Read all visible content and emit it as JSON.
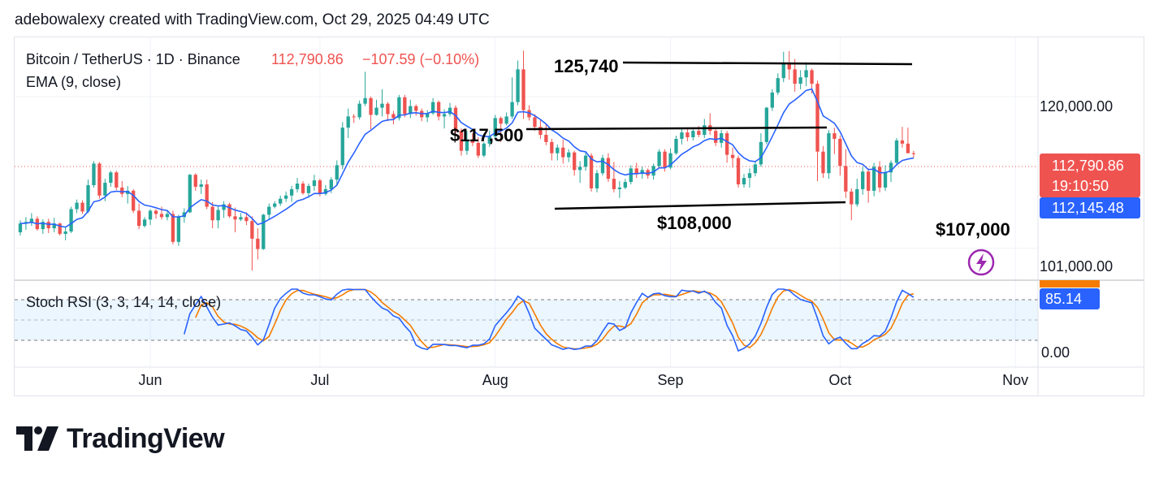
{
  "header": {
    "text": "adebowalexy created with TradingView.com, Oct 29, 2025 04:49 UTC"
  },
  "legend": {
    "symbol": "Bitcoin / TetherUS · 1D · Binance",
    "price": "112,790.86",
    "change": "−107.59 (−0.10%)",
    "ema_label": "EMA (9, close)",
    "rsi_label": "Stoch RSI (3, 3, 14, 14, close)"
  },
  "annotations": {
    "top": "125,740",
    "mid": "$117,500",
    "low1": "$108,000",
    "low2": "$107,000"
  },
  "price_axis": {
    "ticks": [
      "120,000.00",
      "101,000.00"
    ],
    "last_price": "112,790.86",
    "countdown": "19:10:50",
    "ema_value": "112,145.48"
  },
  "rsi_axis": {
    "tick": "0.00",
    "value": "85.14"
  },
  "x_axis": {
    "labels": [
      "Jun",
      "Jul",
      "Aug",
      "Sep",
      "Oct",
      "Nov"
    ]
  },
  "brand": {
    "name": "TradingView"
  },
  "colors": {
    "up": "#26a69a",
    "down": "#ef5350",
    "ema": "#2962ff",
    "k_line": "#2962ff",
    "d_line": "#f57c00",
    "countdown_bg": "#ef5350",
    "ema_badge": "#2962ff",
    "bolt": "#9c27b0"
  },
  "chart_data": {
    "type": "candlestick",
    "title": "Bitcoin / TetherUS · 1D · Binance",
    "x_range": [
      "2025-05-08",
      "2025-11-05"
    ],
    "ylim": [
      97000,
      127000
    ],
    "candles_start": "2025-05-09",
    "candles_ohlc": [
      [
        103000,
        104500,
        102600,
        104100
      ],
      [
        104100,
        104900,
        103300,
        104300
      ],
      [
        104300,
        105400,
        103800,
        104700
      ],
      [
        104700,
        105000,
        103200,
        103400
      ],
      [
        103400,
        104600,
        102800,
        104300
      ],
      [
        104300,
        104700,
        102900,
        103500
      ],
      [
        103500,
        104800,
        103000,
        104100
      ],
      [
        104100,
        104200,
        102600,
        102800
      ],
      [
        102800,
        103700,
        102000,
        103100
      ],
      [
        103100,
        106200,
        102900,
        105900
      ],
      [
        105900,
        107100,
        105400,
        106700
      ],
      [
        106700,
        107000,
        105300,
        105600
      ],
      [
        105600,
        109600,
        105400,
        108900
      ],
      [
        108900,
        111900,
        108600,
        111600
      ],
      [
        111600,
        111800,
        107200,
        107600
      ],
      [
        107600,
        109700,
        106900,
        109200
      ],
      [
        109200,
        110700,
        108700,
        110500
      ],
      [
        110500,
        110700,
        108300,
        108600
      ],
      [
        108600,
        109400,
        107400,
        107800
      ],
      [
        107800,
        108800,
        106600,
        108200
      ],
      [
        108200,
        108400,
        105400,
        105700
      ],
      [
        105700,
        106600,
        103400,
        103800
      ],
      [
        103800,
        104900,
        103600,
        104600
      ],
      [
        104600,
        105900,
        103900,
        105700
      ],
      [
        105700,
        105900,
        104700,
        105300
      ],
      [
        105300,
        106200,
        104600,
        104900
      ],
      [
        104900,
        105700,
        104500,
        105300
      ],
      [
        105300,
        105700,
        101500,
        101800
      ],
      [
        101800,
        105200,
        101300,
        104900
      ],
      [
        104900,
        106000,
        104200,
        105500
      ],
      [
        105500,
        110300,
        105400,
        110200
      ],
      [
        110200,
        110400,
        108200,
        108700
      ],
      [
        108700,
        109600,
        107800,
        109000
      ],
      [
        109000,
        109600,
        105900,
        106200
      ],
      [
        106200,
        106800,
        103500,
        104500
      ],
      [
        104500,
        106400,
        103500,
        105800
      ],
      [
        105800,
        106900,
        104800,
        106500
      ],
      [
        106500,
        106700,
        104800,
        105000
      ],
      [
        105000,
        106100,
        103000,
        104600
      ],
      [
        104600,
        105400,
        104400,
        104900
      ],
      [
        104900,
        105500,
        103900,
        104400
      ],
      [
        104400,
        105000,
        98200,
        102200
      ],
      [
        102200,
        103500,
        99600,
        100900
      ],
      [
        100900,
        105300,
        100800,
        105200
      ],
      [
        105200,
        106600,
        104600,
        106200
      ],
      [
        106200,
        106900,
        106000,
        106600
      ],
      [
        106600,
        107600,
        106300,
        107200
      ],
      [
        107200,
        108100,
        106800,
        107600
      ],
      [
        107600,
        108800,
        106800,
        108400
      ],
      [
        108400,
        109800,
        108000,
        109100
      ],
      [
        109100,
        109400,
        107700,
        107900
      ],
      [
        107900,
        109100,
        107300,
        108800
      ],
      [
        108800,
        110200,
        108200,
        109500
      ],
      [
        109500,
        109700,
        107500,
        107800
      ],
      [
        107800,
        108900,
        107600,
        108400
      ],
      [
        108400,
        109900,
        107900,
        109600
      ],
      [
        109600,
        112000,
        108900,
        111400
      ],
      [
        111400,
        116800,
        110900,
        116100
      ],
      [
        116100,
        118500,
        114800,
        117500
      ],
      [
        117500,
        117800,
        116700,
        117400
      ],
      [
        117400,
        119500,
        117100,
        119100
      ],
      [
        119100,
        123100,
        118800,
        119800
      ],
      [
        119800,
        120000,
        115900,
        117700
      ],
      [
        117700,
        119600,
        117600,
        118600
      ],
      [
        118600,
        120900,
        117500,
        119100
      ],
      [
        119100,
        119300,
        116900,
        117800
      ],
      [
        117800,
        118200,
        116500,
        117300
      ],
      [
        117300,
        120200,
        117000,
        119900
      ],
      [
        119900,
        120200,
        117400,
        117800
      ],
      [
        117800,
        119600,
        117300,
        118800
      ],
      [
        118800,
        119000,
        117600,
        118200
      ],
      [
        118200,
        118500,
        116900,
        117400
      ],
      [
        117400,
        118300,
        116800,
        117900
      ],
      [
        117900,
        119800,
        117700,
        119300
      ],
      [
        119300,
        119500,
        117000,
        117500
      ],
      [
        117500,
        118400,
        116000,
        117800
      ],
      [
        117800,
        119200,
        117500,
        118600
      ],
      [
        118600,
        118900,
        115400,
        115700
      ],
      [
        115700,
        116000,
        112600,
        113200
      ],
      [
        113200,
        115700,
        112700,
        114500
      ],
      [
        114500,
        115400,
        113800,
        114200
      ],
      [
        114200,
        114900,
        112300,
        112600
      ],
      [
        112600,
        114300,
        112400,
        114100
      ],
      [
        114100,
        115700,
        113700,
        115000
      ],
      [
        115000,
        117700,
        114700,
        117300
      ],
      [
        117300,
        117500,
        114300,
        116600
      ],
      [
        116600,
        118000,
        116400,
        117500
      ],
      [
        117500,
        122400,
        117200,
        119300
      ],
      [
        119300,
        124500,
        118900,
        123400
      ],
      [
        123400,
        125740,
        117200,
        118300
      ],
      [
        118300,
        118900,
        117000,
        117400
      ],
      [
        117400,
        117800,
        115700,
        116200
      ],
      [
        116200,
        117100,
        114700,
        115200
      ],
      [
        115200,
        116500,
        113900,
        114300
      ],
      [
        114300,
        114700,
        112000,
        112900
      ],
      [
        112900,
        114000,
        112000,
        113600
      ],
      [
        113600,
        114600,
        111600,
        112400
      ],
      [
        112400,
        113400,
        111800,
        113000
      ],
      [
        113000,
        113200,
        110100,
        110800
      ],
      [
        110800,
        111900,
        109200,
        111200
      ],
      [
        111200,
        113000,
        110700,
        112600
      ],
      [
        112600,
        112900,
        108100,
        108500
      ],
      [
        108500,
        110800,
        108000,
        110400
      ],
      [
        110400,
        112700,
        110100,
        112300
      ],
      [
        112300,
        112900,
        109300,
        109700
      ],
      [
        109700,
        111800,
        108000,
        108400
      ],
      [
        108400,
        109400,
        107300,
        108600
      ],
      [
        108600,
        109700,
        108400,
        109300
      ],
      [
        109300,
        111400,
        109000,
        111000
      ],
      [
        111000,
        111700,
        109800,
        110300
      ],
      [
        110300,
        111200,
        109700,
        110800
      ],
      [
        110800,
        111000,
        109700,
        110100
      ],
      [
        110100,
        111600,
        109600,
        111300
      ],
      [
        111300,
        113400,
        111000,
        113100
      ],
      [
        113100,
        113400,
        110600,
        111100
      ],
      [
        111100,
        113500,
        110900,
        112900
      ],
      [
        112900,
        115100,
        112700,
        114700
      ],
      [
        114700,
        116000,
        114000,
        115500
      ],
      [
        115500,
        115900,
        114400,
        114900
      ],
      [
        114900,
        115900,
        114500,
        115700
      ],
      [
        115700,
        116300,
        114900,
        115200
      ],
      [
        115200,
        117200,
        114800,
        116400
      ],
      [
        116400,
        117900,
        115200,
        115700
      ],
      [
        115700,
        116000,
        113800,
        114200
      ],
      [
        114200,
        115800,
        113600,
        115400
      ],
      [
        115400,
        115700,
        111700,
        112700
      ],
      [
        112700,
        113600,
        111100,
        112300
      ],
      [
        112300,
        112600,
        108600,
        109000
      ],
      [
        109000,
        110300,
        108600,
        109800
      ],
      [
        109800,
        111000,
        108600,
        110400
      ],
      [
        110400,
        111800,
        110000,
        111500
      ],
      [
        111500,
        115400,
        111200,
        114300
      ],
      [
        114300,
        118700,
        114000,
        118600
      ],
      [
        118600,
        120900,
        118200,
        120500
      ],
      [
        120500,
        122900,
        120200,
        122300
      ],
      [
        122300,
        125600,
        121800,
        124100
      ],
      [
        124100,
        125700,
        122100,
        123400
      ],
      [
        123400,
        124700,
        120600,
        121600
      ],
      [
        121600,
        123300,
        120900,
        122400
      ],
      [
        122400,
        124300,
        121300,
        123300
      ],
      [
        123300,
        123500,
        120400,
        121600
      ],
      [
        121600,
        122000,
        109400,
        113100
      ],
      [
        113100,
        113800,
        109800,
        110400
      ],
      [
        110400,
        115800,
        109700,
        115400
      ],
      [
        115400,
        116100,
        112800,
        114700
      ],
      [
        114700,
        115100,
        110100,
        111300
      ],
      [
        111300,
        113400,
        107300,
        108100
      ],
      [
        108100,
        108500,
        104500,
        106500
      ],
      [
        106500,
        109700,
        106200,
        108400
      ],
      [
        108400,
        111200,
        107700,
        110600
      ],
      [
        110600,
        111000,
        106700,
        108200
      ],
      [
        108200,
        111700,
        107500,
        111200
      ],
      [
        111200,
        111900,
        108000,
        108600
      ],
      [
        108600,
        111400,
        108200,
        110500
      ],
      [
        110500,
        112000,
        109300,
        111700
      ],
      [
        111700,
        114800,
        111300,
        114500
      ],
      [
        114500,
        116200,
        113600,
        114100
      ],
      [
        114100,
        116100,
        112900,
        112900
      ],
      [
        112900,
        113200,
        112300,
        112790.86
      ]
    ],
    "ema_9_close_last": 112145.48,
    "stoch_rsi": {
      "label": "Stoch RSI (3, 3, 14, 14, close)",
      "ylim": [
        0,
        100
      ],
      "k_last": 85.14
    },
    "trend_lines": [
      {
        "label": "125,740",
        "from": [
          "2025-08-11",
          125740
        ],
        "to": [
          "2025-10-23",
          125600
        ]
      },
      {
        "label": "$117,500",
        "from": [
          "2025-08-06",
          117500
        ],
        "to": [
          "2025-10-02",
          117700
        ]
      },
      {
        "label": "$108,000",
        "from": [
          "2025-08-13",
          107000
        ],
        "to": [
          "2025-10-04",
          107800
        ]
      }
    ]
  }
}
